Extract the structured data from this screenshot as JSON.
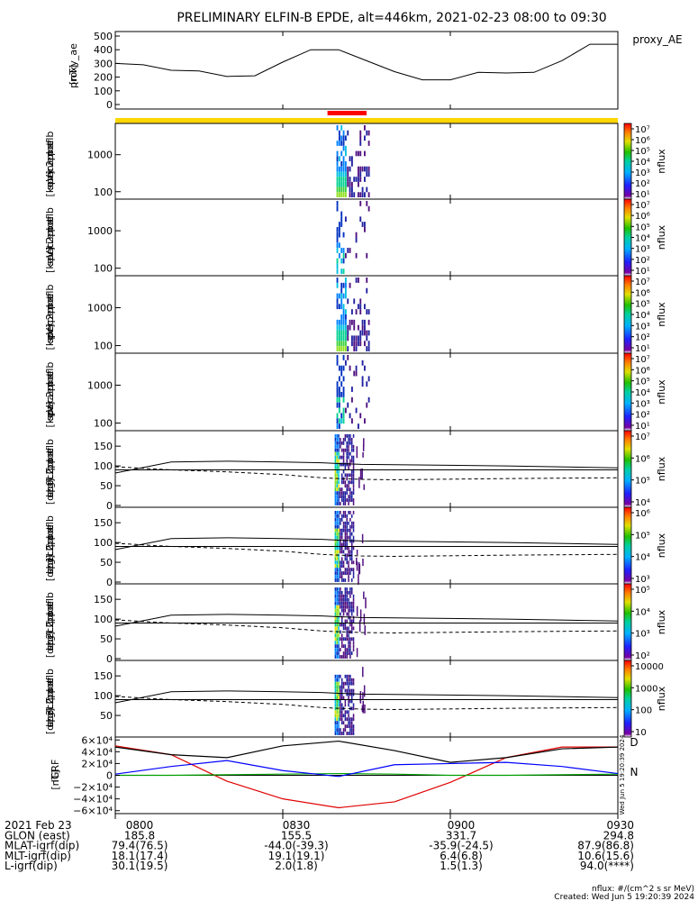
{
  "title": "PRELIMINARY ELFIN-B EPDE, alt=446km, 2021-02-23 08:00 to 09:30",
  "panels": {
    "ae": {
      "ylabel": [
        "proxy_ae",
        "[nT]"
      ],
      "yticks": [
        "500",
        "400",
        "300",
        "200",
        "100",
        "0"
      ],
      "legend": "proxy_AE"
    },
    "spec_en": [
      {
        "ylabel": [
          "elb",
          "pef",
          "en",
          "spec2plot",
          "omni",
          "[keV]"
        ],
        "yticks": [
          "1000",
          "100"
        ]
      },
      {
        "ylabel": [
          "elb",
          "pef",
          "en",
          "spec2plot",
          "anti",
          "[keV]"
        ],
        "yticks": [
          "1000",
          "100"
        ]
      },
      {
        "ylabel": [
          "elb",
          "pef",
          "en",
          "spec2plot",
          "perp",
          "[keV]"
        ],
        "yticks": [
          "1000",
          "100"
        ]
      },
      {
        "ylabel": [
          "elb",
          "pef",
          "en",
          "spec2plot",
          "para",
          "[keV]"
        ],
        "yticks": [
          "1000",
          "100"
        ]
      }
    ],
    "spec_pa": [
      {
        "ylabel": [
          "elb",
          "pef",
          "pa",
          "spec2plot",
          "ch0LC",
          "[deg]"
        ],
        "yticks": [
          "150",
          "100",
          "50",
          "0"
        ]
      },
      {
        "ylabel": [
          "elb",
          "pef",
          "pa",
          "spec2plot",
          "ch1LC",
          "[deg]"
        ],
        "yticks": [
          "150",
          "100",
          "50",
          "0"
        ]
      },
      {
        "ylabel": [
          "elb",
          "pef",
          "pa",
          "spec2plot",
          "ch2LC",
          "[deg]"
        ],
        "yticks": [
          "150",
          "100",
          "50",
          "0"
        ]
      },
      {
        "ylabel": [
          "elb",
          "pef",
          "pa",
          "spec2plot",
          "ch3LC",
          "[deg]"
        ],
        "yticks": [
          "150",
          "100",
          "50"
        ]
      }
    ],
    "igrf": {
      "ylabel": [
        "IGRF",
        "[nT]"
      ],
      "yticks": [
        "6×10⁴",
        "4×10⁴",
        "2×10⁴",
        "0",
        "−2×10⁴",
        "−4×10⁴",
        "−6×10⁴"
      ],
      "labels": [
        "D",
        "N"
      ],
      "side_text": "Wed Jun  5 19:20:39 2024"
    }
  },
  "colorbars": [
    {
      "unit": "nflux",
      "ticks": [
        "10⁷",
        "10⁶",
        "10⁵",
        "10⁴",
        "10³",
        "10²",
        "10¹"
      ]
    },
    {
      "unit": "nflux",
      "ticks": [
        "10⁷",
        "10⁶",
        "10⁵",
        "10⁴",
        "10³",
        "10²",
        "10¹"
      ]
    },
    {
      "unit": "nflux",
      "ticks": [
        "10⁷",
        "10⁶",
        "10⁵",
        "10⁴",
        "10³",
        "10²",
        "10¹"
      ]
    },
    {
      "unit": "nflux",
      "ticks": [
        "10⁷",
        "10⁶",
        "10⁵",
        "10⁴",
        "10³",
        "10²",
        "10¹"
      ]
    },
    {
      "unit": "nflux",
      "ticks": [
        "10⁷",
        "10⁶",
        "10⁵",
        "10⁴"
      ]
    },
    {
      "unit": "nflux",
      "ticks": [
        "10⁶",
        "10⁵",
        "10⁴",
        "10³"
      ]
    },
    {
      "unit": "nflux",
      "ticks": [
        "10⁵",
        "10⁴",
        "10³",
        "10²"
      ]
    },
    {
      "unit": "nflux",
      "ticks": [
        "10000",
        "1000",
        "100",
        "10"
      ]
    }
  ],
  "footer": {
    "rows": [
      [
        "2021 Feb 23",
        "0800",
        "0830",
        "0900",
        "0930"
      ],
      [
        "GLON (east)",
        "185.8",
        "155.5",
        "331.7",
        "294.8"
      ],
      [
        "MLAT-igrf(dip)",
        "79.4(76.5)",
        "-44.0(-39.3)",
        "-35.9(-24.5)",
        "87.9(86.8)"
      ],
      [
        "MLT-igrf(dip)",
        "18.1(17.4)",
        "19.1(19.1)",
        "6.4(6.8)",
        "10.6(15.6)"
      ],
      [
        "L-igrf(dip)",
        "30.1(19.5)",
        "2.0(1.8)",
        "1.5(1.3)",
        "94.0(****)"
      ]
    ],
    "note": "nflux: #/(cm^2 s sr MeV)",
    "created": "Created: Wed Jun  5 19:20:39 2024"
  },
  "colors": {
    "spin_bar": "#ffd700",
    "science_bar": "#ff0000",
    "igrf_D": "#e00000",
    "igrf_H": "#0000ff",
    "igrf_N": "#00a000"
  },
  "chart_data": {
    "type": "line",
    "x_label": "UT",
    "x_ticks": [
      "0800",
      "0830",
      "0900",
      "0930"
    ],
    "x_range_min": [
      0,
      90
    ],
    "proxy_ae": {
      "x": [
        0,
        5,
        10,
        15,
        20,
        25,
        30,
        35,
        40,
        45,
        50,
        55,
        60,
        65,
        70,
        75,
        80,
        85,
        90
      ],
      "y": [
        300,
        290,
        250,
        245,
        205,
        210,
        310,
        400,
        400,
        320,
        240,
        180,
        180,
        235,
        230,
        235,
        320,
        440,
        440
      ],
      "ylim": [
        0,
        500
      ]
    },
    "science_zone_min": [
      38,
      45
    ],
    "spectrogram_time_min": [
      38,
      45
    ],
    "energy_range_keV": [
      63,
      7000
    ],
    "pitch_angle_range_deg": [
      0,
      180
    ],
    "loss_cone": {
      "x": [
        0,
        10,
        20,
        30,
        37,
        40,
        44,
        50,
        70,
        90
      ],
      "solid_y": [
        82,
        110,
        112,
        110,
        108,
        106,
        104,
        103,
        100,
        95
      ],
      "dashed_y": [
        98,
        90,
        85,
        78,
        70,
        68,
        66,
        65,
        68,
        70
      ],
      "ylim": [
        0,
        180
      ]
    },
    "igrf": {
      "x": [
        0,
        10,
        20,
        30,
        40,
        50,
        60,
        70,
        80,
        90
      ],
      "series": [
        {
          "name": "D",
          "values": [
            50000,
            35000,
            -10000,
            -40000,
            -55000,
            -45000,
            -12000,
            30000,
            48000,
            48000
          ]
        },
        {
          "name": "N",
          "values": [
            0,
            0,
            1000,
            2000,
            3000,
            2000,
            0,
            0,
            1000,
            2000
          ]
        },
        {
          "name": "H",
          "values": [
            2000,
            15000,
            25000,
            8000,
            -2000,
            18000,
            20000,
            22000,
            15000,
            3000
          ]
        },
        {
          "name": "total",
          "values": [
            48000,
            35000,
            30000,
            50000,
            58000,
            42000,
            22000,
            30000,
            45000,
            48000
          ]
        }
      ],
      "ylim": [
        -65000,
        65000
      ]
    }
  }
}
